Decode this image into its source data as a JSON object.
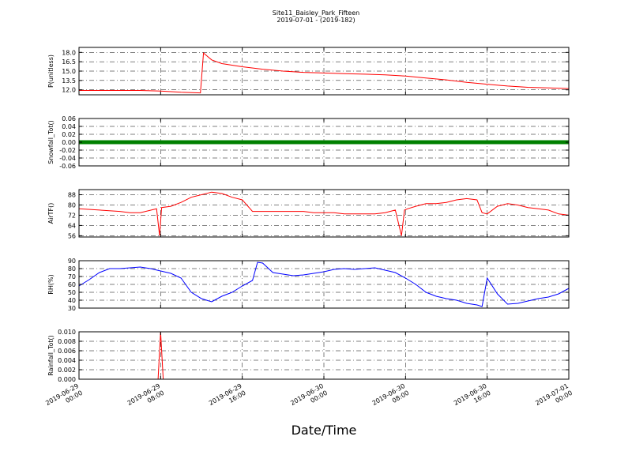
{
  "title": "Site11_Baisley_Park_Fifteen",
  "subtitle": "2019-07-01 - (2019-182)",
  "xlabel": "Date/Time",
  "x_ticks": [
    "2019-06-29\n00:00",
    "2019-06-29\n08:00",
    "2019-06-29\n16:00",
    "2019-06-30\n00:00",
    "2019-06-30\n08:00",
    "2019-06-30\n16:00",
    "2019-07-01\n00:00"
  ],
  "chart_data": [
    {
      "type": "line",
      "ylabel": "P(unitless)",
      "ylim": [
        11.2,
        18.8
      ],
      "yticks": [
        "12.0",
        "13.5",
        "15.0",
        "16.5",
        "18.0"
      ],
      "ytick_values": [
        12.0,
        13.5,
        15.0,
        16.5,
        18.0
      ],
      "grid": true,
      "series": [
        {
          "color": "#ff0000",
          "x": [
            0,
            2,
            4,
            6,
            8,
            10,
            11.9,
            12.2,
            13,
            14,
            16,
            18,
            20,
            22,
            24,
            26,
            28,
            30,
            32,
            34,
            36,
            38,
            40,
            42,
            44,
            46,
            48
          ],
          "values": [
            11.9,
            11.9,
            11.9,
            11.9,
            11.8,
            11.6,
            11.5,
            17.9,
            16.8,
            16.2,
            15.7,
            15.3,
            15.0,
            14.8,
            14.7,
            14.6,
            14.5,
            14.4,
            14.2,
            13.9,
            13.6,
            13.2,
            12.9,
            12.6,
            12.4,
            12.3,
            12.2
          ]
        }
      ]
    },
    {
      "type": "line",
      "ylabel": "Snowfall_Tot()",
      "ylim": [
        -0.06,
        0.06
      ],
      "yticks": [
        "-0.06",
        "-0.04",
        "-0.02",
        "0.00",
        "0.02",
        "0.04",
        "0.06"
      ],
      "ytick_values": [
        -0.06,
        -0.04,
        -0.02,
        0.0,
        0.02,
        0.04,
        0.06
      ],
      "grid": true,
      "series": [
        {
          "color": "#008000",
          "marker": true,
          "x": [
            0,
            48
          ],
          "values": [
            0,
            0
          ]
        }
      ]
    },
    {
      "type": "line",
      "ylabel": "AirTF()",
      "ylim": [
        55,
        92
      ],
      "yticks": [
        "56",
        "64",
        "72",
        "80",
        "88"
      ],
      "ytick_values": [
        56,
        64,
        72,
        80,
        88
      ],
      "grid": true,
      "series": [
        {
          "color": "#ff0000",
          "x": [
            0,
            2,
            4,
            5,
            6,
            7.6,
            7.9,
            8.1,
            9,
            10,
            11,
            12,
            13,
            14,
            15,
            16,
            17,
            17.5,
            18,
            19,
            20,
            21,
            22,
            23,
            24,
            25,
            26,
            27,
            28,
            29,
            30,
            31,
            31.6,
            31.9,
            32.2,
            33,
            34,
            35,
            36,
            37,
            38,
            39,
            39.5,
            40,
            41,
            42,
            43,
            44,
            45,
            46,
            47,
            48
          ],
          "values": [
            77,
            76,
            75,
            74,
            74,
            77,
            56,
            78,
            79,
            82,
            86,
            88,
            90,
            89,
            86,
            84,
            75,
            75,
            75,
            75,
            75,
            75,
            75,
            74,
            74,
            74,
            73,
            73,
            73,
            73,
            74,
            76,
            56,
            76,
            77,
            79,
            81,
            81,
            82,
            84,
            85,
            84,
            74,
            73,
            79,
            81,
            80,
            78,
            77,
            76,
            73,
            72
          ]
        }
      ]
    },
    {
      "type": "line",
      "ylabel": "RH(%)",
      "ylim": [
        30,
        90
      ],
      "yticks": [
        "30",
        "40",
        "50",
        "60",
        "70",
        "80",
        "90"
      ],
      "ytick_values": [
        30,
        40,
        50,
        60,
        70,
        80,
        90
      ],
      "grid": true,
      "series": [
        {
          "color": "#0000ff",
          "x": [
            0,
            1,
            2,
            3,
            4,
            5,
            6,
            7,
            8,
            9,
            10,
            11,
            12,
            13,
            14,
            15,
            16,
            17,
            17.5,
            18,
            19,
            20,
            21,
            22,
            23,
            24,
            25,
            26,
            27,
            28,
            29,
            30,
            31,
            32,
            33,
            34,
            35,
            36,
            37,
            38,
            39,
            39.5,
            40,
            41,
            42,
            43,
            44,
            45,
            46,
            47,
            48
          ],
          "values": [
            58,
            66,
            75,
            80,
            80,
            81,
            82,
            80,
            77,
            74,
            68,
            50,
            42,
            38,
            45,
            50,
            58,
            65,
            88,
            87,
            75,
            73,
            71,
            72,
            74,
            76,
            79,
            80,
            79,
            80,
            81,
            78,
            75,
            68,
            60,
            50,
            45,
            42,
            40,
            36,
            34,
            32,
            68,
            48,
            35,
            36,
            39,
            42,
            44,
            48,
            55
          ]
        }
      ]
    },
    {
      "type": "line",
      "ylabel": "Rainfall_Tot()",
      "ylim": [
        0,
        0.01
      ],
      "yticks": [
        "0.000",
        "0.002",
        "0.004",
        "0.006",
        "0.008",
        "0.010"
      ],
      "ytick_values": [
        0,
        0.002,
        0.004,
        0.006,
        0.008,
        0.01
      ],
      "grid": true,
      "series": [
        {
          "color": "#ff0000",
          "x": [
            0,
            7.75,
            8.0,
            8.25,
            48
          ],
          "values": [
            0,
            0,
            0.01,
            0,
            0
          ]
        }
      ]
    }
  ]
}
